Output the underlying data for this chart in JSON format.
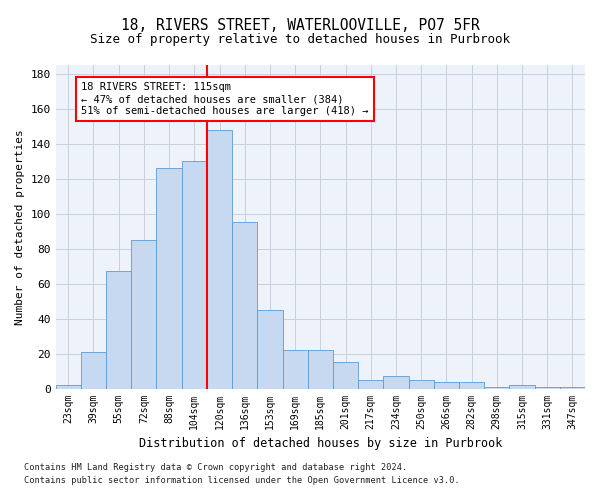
{
  "title1": "18, RIVERS STREET, WATERLOOVILLE, PO7 5FR",
  "title2": "Size of property relative to detached houses in Purbrook",
  "xlabel": "Distribution of detached houses by size in Purbrook",
  "ylabel": "Number of detached properties",
  "bar_labels": [
    "23sqm",
    "39sqm",
    "55sqm",
    "72sqm",
    "88sqm",
    "104sqm",
    "120sqm",
    "136sqm",
    "153sqm",
    "169sqm",
    "185sqm",
    "201sqm",
    "217sqm",
    "234sqm",
    "250sqm",
    "266sqm",
    "282sqm",
    "298sqm",
    "315sqm",
    "331sqm",
    "347sqm"
  ],
  "bar_heights": [
    2,
    21,
    67,
    85,
    126,
    130,
    148,
    95,
    45,
    22,
    22,
    15,
    5,
    7,
    5,
    4,
    4,
    1,
    2,
    1,
    1
  ],
  "bar_color": "#c6d9f0",
  "bar_edge_color": "#5b9bd5",
  "vline_x": 5.5,
  "vline_color": "red",
  "annotation_text": "18 RIVERS STREET: 115sqm\n← 47% of detached houses are smaller (384)\n51% of semi-detached houses are larger (418) →",
  "annotation_box_color": "white",
  "annotation_box_edge": "red",
  "ylim": [
    0,
    185
  ],
  "yticks": [
    0,
    20,
    40,
    60,
    80,
    100,
    120,
    140,
    160,
    180
  ],
  "footer1": "Contains HM Land Registry data © Crown copyright and database right 2024.",
  "footer2": "Contains public sector information licensed under the Open Government Licence v3.0.",
  "bg_color": "#eef2fb",
  "grid_color": "#c8d0e0",
  "fig_width": 6.0,
  "fig_height": 5.0,
  "title1_fontsize": 10.5,
  "title2_fontsize": 9
}
